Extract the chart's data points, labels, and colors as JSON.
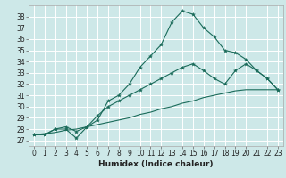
{
  "title": "",
  "xlabel": "Humidex (Indice chaleur)",
  "background_color": "#cde8e8",
  "grid_color": "#ffffff",
  "line_color": "#1a6b5a",
  "xlim": [
    -0.5,
    23.5
  ],
  "ylim": [
    26.5,
    39.0
  ],
  "yticks": [
    27,
    28,
    29,
    30,
    31,
    32,
    33,
    34,
    35,
    36,
    37,
    38
  ],
  "xticks": [
    0,
    1,
    2,
    3,
    4,
    5,
    6,
    7,
    8,
    9,
    10,
    11,
    12,
    13,
    14,
    15,
    16,
    17,
    18,
    19,
    20,
    21,
    22,
    23
  ],
  "line1_x": [
    0,
    1,
    2,
    3,
    4,
    5,
    6,
    7,
    8,
    9,
    10,
    11,
    12,
    13,
    14,
    15,
    16,
    17,
    18,
    19,
    20,
    21,
    22,
    23
  ],
  "line1_y": [
    27.5,
    27.5,
    28.0,
    28.0,
    27.2,
    28.2,
    28.8,
    30.5,
    31.0,
    32.0,
    33.5,
    34.5,
    35.5,
    37.5,
    38.5,
    38.2,
    37.0,
    36.2,
    35.0,
    34.8,
    34.2,
    33.2,
    32.5,
    31.5
  ],
  "line2_x": [
    0,
    1,
    2,
    3,
    4,
    5,
    6,
    7,
    8,
    9,
    10,
    11,
    12,
    13,
    14,
    15,
    16,
    17,
    18,
    19,
    20,
    21,
    22,
    23
  ],
  "line2_y": [
    27.5,
    27.5,
    28.0,
    28.2,
    27.8,
    28.2,
    29.2,
    30.0,
    30.5,
    31.0,
    31.5,
    32.0,
    32.5,
    33.0,
    33.5,
    33.8,
    33.2,
    32.5,
    32.0,
    33.2,
    33.8,
    33.2,
    32.5,
    31.5
  ],
  "line3_x": [
    0,
    1,
    2,
    3,
    4,
    5,
    6,
    7,
    8,
    9,
    10,
    11,
    12,
    13,
    14,
    15,
    16,
    17,
    18,
    19,
    20,
    21,
    22,
    23
  ],
  "line3_y": [
    27.5,
    27.6,
    27.7,
    27.9,
    28.0,
    28.2,
    28.4,
    28.6,
    28.8,
    29.0,
    29.3,
    29.5,
    29.8,
    30.0,
    30.3,
    30.5,
    30.8,
    31.0,
    31.2,
    31.4,
    31.5,
    31.5,
    31.5,
    31.5
  ],
  "xlabel_fontsize": 6.5,
  "tick_fontsize": 5.5
}
